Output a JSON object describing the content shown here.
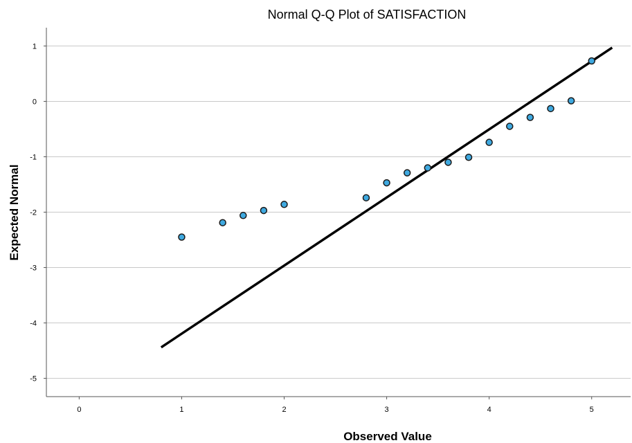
{
  "chart_data": {
    "type": "scatter",
    "title": "Normal Q-Q Plot of SATISFACTION",
    "xlabel": "Observed Value",
    "ylabel": "Expected Normal",
    "xlim": [
      -0.32,
      5.38
    ],
    "ylim": [
      -5.33,
      1.33
    ],
    "x_ticks": [
      0,
      1,
      2,
      3,
      4,
      5
    ],
    "x_tick_labels": [
      "0",
      "1",
      "2",
      "3",
      "4",
      "5"
    ],
    "y_ticks": [
      1,
      0,
      -1,
      -2,
      -3,
      -4,
      -5
    ],
    "y_tick_labels": [
      "1",
      "0",
      "-1",
      "-2",
      "-3",
      "-4",
      "-5"
    ],
    "grid": "horizontal",
    "legend": "none",
    "series": [
      {
        "points": [
          {
            "x": 1.0,
            "y": -2.45
          },
          {
            "x": 1.4,
            "y": -2.19
          },
          {
            "x": 1.6,
            "y": -2.06
          },
          {
            "x": 1.8,
            "y": -1.97
          },
          {
            "x": 2.0,
            "y": -1.86
          },
          {
            "x": 2.8,
            "y": -1.74
          },
          {
            "x": 3.0,
            "y": -1.47
          },
          {
            "x": 3.2,
            "y": -1.29
          },
          {
            "x": 3.4,
            "y": -1.2
          },
          {
            "x": 3.6,
            "y": -1.1
          },
          {
            "x": 3.8,
            "y": -1.01
          },
          {
            "x": 4.0,
            "y": -0.74
          },
          {
            "x": 4.2,
            "y": -0.45
          },
          {
            "x": 4.4,
            "y": -0.29
          },
          {
            "x": 4.6,
            "y": -0.13
          },
          {
            "x": 4.8,
            "y": 0.01
          },
          {
            "x": 5.0,
            "y": 0.73
          }
        ]
      }
    ],
    "reference_line": {
      "x": [
        0.8,
        5.2
      ],
      "y": [
        -4.44,
        0.97
      ]
    },
    "colors": {
      "point_fill": "#3fa9e0",
      "point_stroke": "#1a1a1a",
      "line": "#000000",
      "grid": "#c8c8c8",
      "axis": "#555555"
    }
  }
}
